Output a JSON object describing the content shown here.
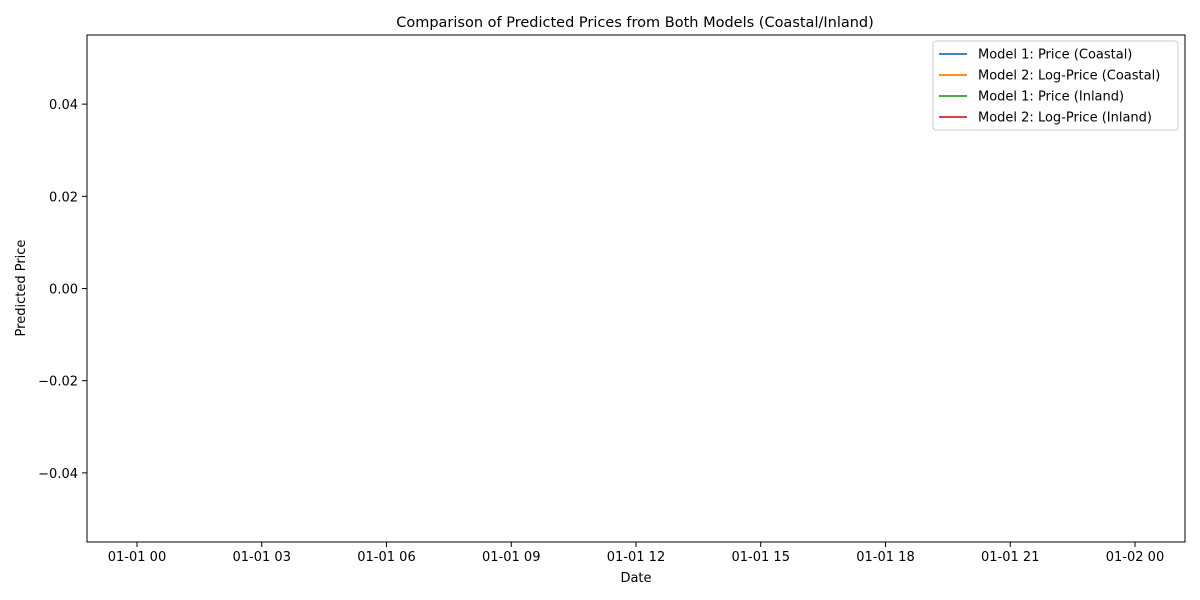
{
  "chart_data": {
    "type": "line",
    "title": "Comparison of Predicted Prices from Both Models (Coastal/Inland)",
    "xlabel": "Date",
    "ylabel": "Predicted Price",
    "x_ticks": [
      "01-01 00",
      "01-01 03",
      "01-01 06",
      "01-01 09",
      "01-01 12",
      "01-01 15",
      "01-01 18",
      "01-01 21",
      "01-02 00"
    ],
    "y_ticks": [
      "−0.04",
      "−0.02",
      "0.00",
      "0.02",
      "0.04"
    ],
    "y_tick_values": [
      -0.04,
      -0.02,
      0.0,
      0.02,
      0.04
    ],
    "ylim": [
      -0.055,
      0.055
    ],
    "grid": false,
    "legend_position": "upper right",
    "series": [
      {
        "name": "Model 1: Price (Coastal)",
        "color": "#1f77b4",
        "values": []
      },
      {
        "name": "Model 2: Log-Price (Coastal)",
        "color": "#ff7f0e",
        "values": []
      },
      {
        "name": "Model 1: Price (Inland)",
        "color": "#2ca02c",
        "values": []
      },
      {
        "name": "Model 2: Log-Price (Inland)",
        "color": "#d62728",
        "values": []
      }
    ]
  }
}
